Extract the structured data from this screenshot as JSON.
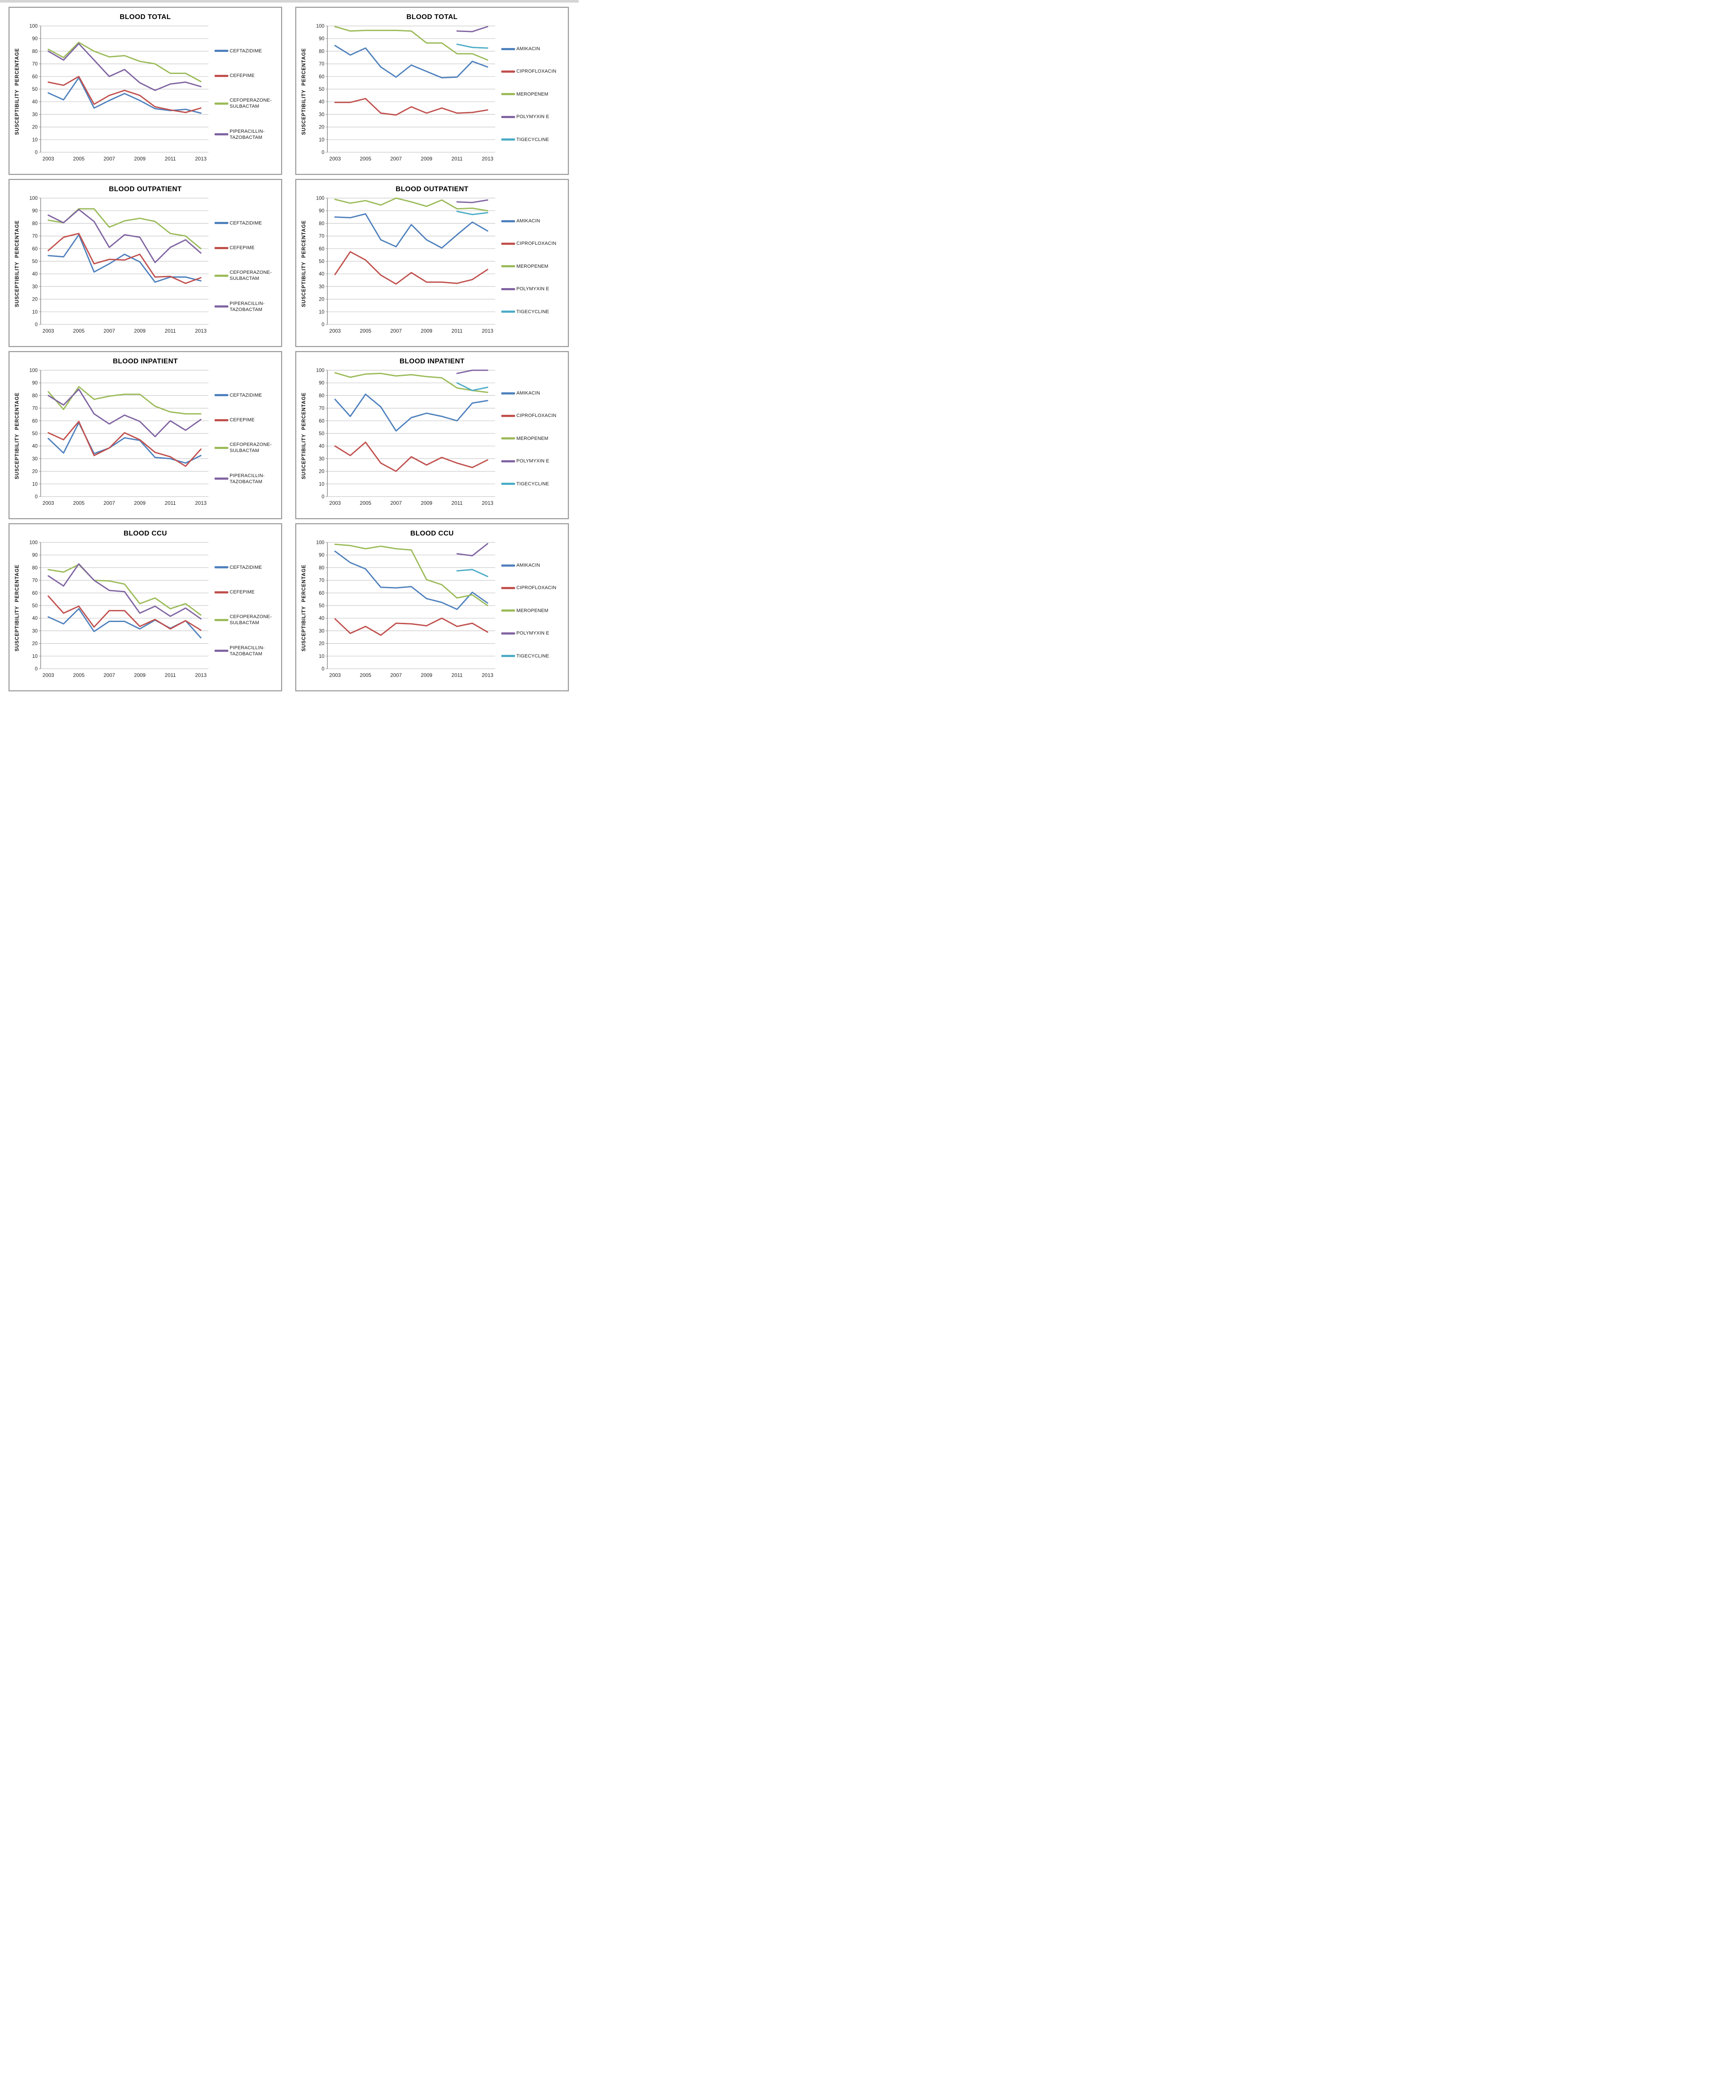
{
  "page": {
    "background": "#ffffff",
    "panel_border_color": "#969696",
    "gridline_color": "#c8c8c8",
    "axis_line_color": "#898989",
    "tick_text_color": "#262626"
  },
  "chart_data": [
    {
      "type": "line",
      "title": "BLOOD TOTAL",
      "ylabel": "SUSCEPTIBILITY PERCENTAGE",
      "x": [
        2003,
        2004,
        2005,
        2006,
        2007,
        2008,
        2009,
        2010,
        2011,
        2012,
        2013
      ],
      "x_tick_labels": [
        2003,
        2005,
        2007,
        2009,
        2011,
        2013
      ],
      "ylim": [
        0,
        100
      ],
      "y_ticks": [
        0,
        10,
        20,
        30,
        40,
        50,
        60,
        70,
        80,
        90,
        100
      ],
      "grid": true,
      "legend_position": "right",
      "series": [
        {
          "name": "CEFTAZIDIME",
          "color": "#4F81BD",
          "values": [
            47,
            41.5,
            59,
            35,
            41,
            46.5,
            41,
            34.5,
            33,
            34,
            31
          ]
        },
        {
          "name": "CEFEPIME",
          "color": "#C0504D",
          "values": [
            55.5,
            53,
            60,
            38,
            45,
            49,
            45,
            36,
            33.5,
            31.5,
            35
          ]
        },
        {
          "name": "CEFOPERAZONE-SULBACTAM",
          "color": "#9BBB59",
          "values": [
            81.5,
            75,
            87,
            80,
            75.5,
            76.5,
            72,
            70,
            62.5,
            62.5,
            56
          ]
        },
        {
          "name": "PIPERACILLIN-TAZOBACTAM",
          "color": "#8064A2",
          "values": [
            80,
            73,
            86,
            73,
            60,
            65.5,
            55,
            49,
            54,
            55.5,
            52
          ]
        }
      ]
    },
    {
      "type": "line",
      "title": "BLOOD TOTAL",
      "ylabel": "SUSCEPTIBILITY PERCENTAGE",
      "x": [
        2003,
        2004,
        2005,
        2006,
        2007,
        2008,
        2009,
        2010,
        2011,
        2012,
        2013
      ],
      "x_tick_labels": [
        2003,
        2005,
        2007,
        2009,
        2011,
        2013
      ],
      "ylim": [
        0,
        100
      ],
      "y_ticks": [
        0,
        10,
        20,
        30,
        40,
        50,
        60,
        70,
        80,
        90,
        100
      ],
      "grid": true,
      "legend_position": "right",
      "series": [
        {
          "name": "AMIKACIN",
          "color": "#4F81BD",
          "values": [
            84.5,
            77,
            82.5,
            67.5,
            59.5,
            69,
            64,
            59,
            59.5,
            72,
            67.5
          ]
        },
        {
          "name": "CIPROFLOXACIN",
          "color": "#C0504D",
          "values": [
            39.5,
            39.5,
            42.5,
            31,
            29.5,
            36,
            31,
            35,
            31,
            31.5,
            33.5
          ]
        },
        {
          "name": "MEROPENEM",
          "color": "#9BBB59",
          "values": [
            99.5,
            96,
            96.5,
            96.5,
            96.5,
            96,
            86.5,
            86.5,
            78,
            78,
            73
          ]
        },
        {
          "name": "POLYMYXIN E",
          "color": "#8064A2",
          "values": [
            null,
            null,
            null,
            null,
            null,
            null,
            null,
            null,
            96,
            95.5,
            99.5
          ]
        },
        {
          "name": "TIGECYCLINE",
          "color": "#4BACC6",
          "values": [
            null,
            null,
            null,
            null,
            null,
            null,
            null,
            null,
            85.5,
            83,
            82.5
          ]
        }
      ]
    },
    {
      "type": "line",
      "title": "BLOOD OUTPATIENT",
      "ylabel": "SUSCEPTIBILITY PERCENTAGE",
      "x": [
        2003,
        2004,
        2005,
        2006,
        2007,
        2008,
        2009,
        2010,
        2011,
        2012,
        2013
      ],
      "x_tick_labels": [
        2003,
        2005,
        2007,
        2009,
        2011,
        2013
      ],
      "ylim": [
        0,
        100
      ],
      "y_ticks": [
        0,
        10,
        20,
        30,
        40,
        50,
        60,
        70,
        80,
        90,
        100
      ],
      "grid": true,
      "legend_position": "right",
      "series": [
        {
          "name": "CEFTAZIDIME",
          "color": "#4F81BD",
          "values": [
            54.5,
            53.5,
            71,
            41.5,
            48,
            55.5,
            49.5,
            33.5,
            37.5,
            37.5,
            34.5
          ]
        },
        {
          "name": "CEFEPIME",
          "color": "#C0504D",
          "values": [
            58.5,
            69,
            72,
            48,
            51.5,
            51,
            55.5,
            37.5,
            38,
            32.5,
            37
          ]
        },
        {
          "name": "CEFOPERAZONE-SULBACTAM",
          "color": "#9BBB59",
          "values": [
            82.5,
            80.5,
            91.5,
            91.5,
            77,
            82,
            84,
            81.5,
            72,
            70,
            60
          ]
        },
        {
          "name": "PIPERACILLIN-TAZOBACTAM",
          "color": "#8064A2",
          "values": [
            86.5,
            80.5,
            91,
            81.5,
            61,
            71,
            69,
            49,
            61,
            67,
            56.5
          ]
        }
      ]
    },
    {
      "type": "line",
      "title": "BLOOD OUTPATIENT",
      "ylabel": "SUSCEPTIBILITY PERCENTAGE",
      "x": [
        2003,
        2004,
        2005,
        2006,
        2007,
        2008,
        2009,
        2010,
        2011,
        2012,
        2013
      ],
      "x_tick_labels": [
        2003,
        2005,
        2007,
        2009,
        2011,
        2013
      ],
      "ylim": [
        0,
        100
      ],
      "y_ticks": [
        0,
        10,
        20,
        30,
        40,
        50,
        60,
        70,
        80,
        90,
        100
      ],
      "grid": true,
      "legend_position": "right",
      "series": [
        {
          "name": "AMIKACIN",
          "color": "#4F81BD",
          "values": [
            85,
            84.5,
            87.5,
            67,
            61.5,
            79,
            67,
            60.5,
            71,
            81,
            74
          ]
        },
        {
          "name": "CIPROFLOXACIN",
          "color": "#C0504D",
          "values": [
            39.5,
            57.5,
            51,
            39,
            32,
            41,
            33.5,
            33.5,
            32.5,
            35.5,
            43.5
          ]
        },
        {
          "name": "MEROPENEM",
          "color": "#9BBB59",
          "values": [
            99,
            96,
            98,
            94.5,
            100,
            97,
            93.5,
            98.5,
            91.5,
            92,
            90
          ]
        },
        {
          "name": "POLYMYXIN E",
          "color": "#8064A2",
          "values": [
            null,
            null,
            null,
            null,
            null,
            null,
            null,
            null,
            97,
            96.5,
            98.5
          ]
        },
        {
          "name": "TIGECYCLINE",
          "color": "#4BACC6",
          "values": [
            null,
            null,
            null,
            null,
            null,
            null,
            null,
            null,
            89.5,
            87,
            88.5
          ]
        }
      ]
    },
    {
      "type": "line",
      "title": "BLOOD INPATIENT",
      "ylabel": "SUSCEPTIBILITY PERCENTAGE",
      "x": [
        2003,
        2004,
        2005,
        2006,
        2007,
        2008,
        2009,
        2010,
        2011,
        2012,
        2013
      ],
      "x_tick_labels": [
        2003,
        2005,
        2007,
        2009,
        2011,
        2013
      ],
      "ylim": [
        0,
        100
      ],
      "y_ticks": [
        0,
        10,
        20,
        30,
        40,
        50,
        60,
        70,
        80,
        90,
        100
      ],
      "grid": true,
      "legend_position": "right",
      "series": [
        {
          "name": "CEFTAZIDIME",
          "color": "#4F81BD",
          "values": [
            46,
            34.5,
            58.5,
            34,
            38.5,
            46.5,
            44.5,
            31,
            30,
            26.5,
            32.5
          ]
        },
        {
          "name": "CEFEPIME",
          "color": "#C0504D",
          "values": [
            50.5,
            45,
            59.5,
            32.5,
            38.5,
            50.5,
            45,
            35,
            31.5,
            24,
            37.5
          ]
        },
        {
          "name": "CEFOPERAZONE-SULBACTAM",
          "color": "#9BBB59",
          "values": [
            83,
            69,
            87,
            77,
            79.5,
            81,
            81,
            71.5,
            67,
            65.5,
            65.5
          ]
        },
        {
          "name": "PIPERACILLIN-TAZOBACTAM",
          "color": "#8064A2",
          "values": [
            80,
            72.5,
            85,
            65.5,
            57.5,
            64.5,
            59.5,
            47.5,
            60,
            52.5,
            61
          ]
        }
      ]
    },
    {
      "type": "line",
      "title": "BLOOD INPATIENT",
      "ylabel": "SUSCEPTIBILITY PERCENTAGE",
      "x": [
        2003,
        2004,
        2005,
        2006,
        2007,
        2008,
        2009,
        2010,
        2011,
        2012,
        2013
      ],
      "x_tick_labels": [
        2003,
        2005,
        2007,
        2009,
        2011,
        2013
      ],
      "ylim": [
        0,
        100
      ],
      "y_ticks": [
        0,
        10,
        20,
        30,
        40,
        50,
        60,
        70,
        80,
        90,
        100
      ],
      "grid": true,
      "legend_position": "right",
      "series": [
        {
          "name": "AMIKACIN",
          "color": "#4F81BD",
          "values": [
            77,
            63.5,
            81,
            71,
            52,
            62.5,
            66,
            63.5,
            60,
            74,
            76
          ]
        },
        {
          "name": "CIPROFLOXACIN",
          "color": "#C0504D",
          "values": [
            40,
            32.5,
            43,
            26.5,
            20,
            31.5,
            25,
            31,
            26.5,
            23,
            29
          ]
        },
        {
          "name": "MEROPENEM",
          "color": "#9BBB59",
          "values": [
            98,
            94.5,
            97,
            97.5,
            95.5,
            96.5,
            95,
            94,
            86,
            84,
            82.5
          ]
        },
        {
          "name": "POLYMYXIN E",
          "color": "#8064A2",
          "values": [
            null,
            null,
            null,
            null,
            null,
            null,
            null,
            null,
            97.5,
            100,
            100
          ]
        },
        {
          "name": "TIGECYCLINE",
          "color": "#4BACC6",
          "values": [
            null,
            null,
            null,
            null,
            null,
            null,
            null,
            null,
            90,
            84,
            86.5
          ]
        }
      ]
    },
    {
      "type": "line",
      "title": "BLOOD CCU",
      "ylabel": "SUSCEPTIBILITY PERCENTAGE",
      "x": [
        2003,
        2004,
        2005,
        2006,
        2007,
        2008,
        2009,
        2010,
        2011,
        2012,
        2013
      ],
      "x_tick_labels": [
        2003,
        2005,
        2007,
        2009,
        2011,
        2013
      ],
      "ylim": [
        0,
        100
      ],
      "y_ticks": [
        0,
        10,
        20,
        30,
        40,
        50,
        60,
        70,
        80,
        90,
        100
      ],
      "grid": true,
      "legend_position": "right",
      "series": [
        {
          "name": "CEFTAZIDIME",
          "color": "#4F81BD",
          "values": [
            41,
            35.5,
            47.5,
            29.5,
            37.5,
            37.5,
            31.5,
            38.5,
            32,
            38,
            24.5
          ]
        },
        {
          "name": "CEFEPIME",
          "color": "#C0504D",
          "values": [
            57.5,
            44,
            49.5,
            33,
            46,
            46,
            33.5,
            39,
            31.5,
            38,
            30.5
          ]
        },
        {
          "name": "CEFOPERAZONE-SULBACTAM",
          "color": "#9BBB59",
          "values": [
            78.5,
            76.5,
            82.5,
            70,
            69.5,
            67,
            51.5,
            56,
            47.5,
            51.5,
            42.5
          ]
        },
        {
          "name": "PIPERACILLIN-TAZOBACTAM",
          "color": "#8064A2",
          "values": [
            73.5,
            65.5,
            83,
            70,
            62,
            61,
            44,
            49.5,
            41.5,
            48,
            39.5
          ]
        }
      ]
    },
    {
      "type": "line",
      "title": "BLOOD CCU",
      "ylabel": "SUSCEPTIBILITY PERCENTAGE",
      "x": [
        2003,
        2004,
        2005,
        2006,
        2007,
        2008,
        2009,
        2010,
        2011,
        2012,
        2013
      ],
      "x_tick_labels": [
        2003,
        2005,
        2007,
        2009,
        2011,
        2013
      ],
      "ylim": [
        0,
        100
      ],
      "y_ticks": [
        0,
        10,
        20,
        30,
        40,
        50,
        60,
        70,
        80,
        90,
        100
      ],
      "grid": true,
      "legend_position": "right",
      "series": [
        {
          "name": "AMIKACIN",
          "color": "#4F81BD",
          "values": [
            93,
            84,
            79,
            64.5,
            64,
            65,
            55.5,
            52.5,
            47,
            60.5,
            52
          ]
        },
        {
          "name": "CIPROFLOXACIN",
          "color": "#C0504D",
          "values": [
            39.5,
            28,
            33.5,
            26.5,
            36,
            35.5,
            34,
            40,
            33.5,
            36,
            29
          ]
        },
        {
          "name": "MEROPENEM",
          "color": "#9BBB59",
          "values": [
            98.5,
            97.5,
            95,
            97,
            95,
            94,
            70.5,
            66.5,
            56,
            58.5,
            50
          ]
        },
        {
          "name": "POLYMYXIN E",
          "color": "#8064A2",
          "values": [
            null,
            null,
            null,
            null,
            null,
            null,
            null,
            null,
            91,
            89.5,
            99
          ]
        },
        {
          "name": "TIGECYCLINE",
          "color": "#4BACC6",
          "values": [
            null,
            null,
            null,
            null,
            null,
            null,
            null,
            null,
            77.5,
            78.5,
            73
          ]
        }
      ]
    }
  ]
}
